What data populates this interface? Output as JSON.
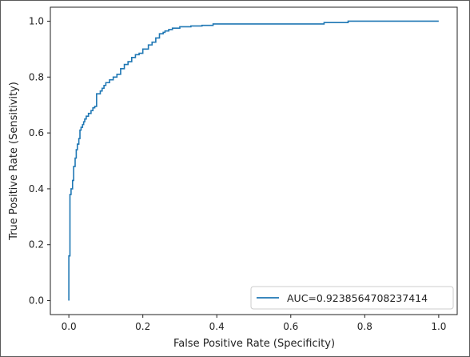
{
  "chart_data": {
    "type": "line",
    "xlabel": "False Positive Rate (Specificity)",
    "ylabel": "True Positive Rate  (Sensitivity)",
    "xlim": [
      -0.05,
      1.05
    ],
    "ylim": [
      -0.05,
      1.05
    ],
    "xticks": [
      "0.0",
      "0.2",
      "0.4",
      "0.6",
      "0.8",
      "1.0"
    ],
    "yticks": [
      "0.0",
      "0.2",
      "0.4",
      "0.6",
      "0.8",
      "1.0"
    ],
    "grid": false,
    "legend_position": "lower-right",
    "line_color": "#1f77b4",
    "series": [
      {
        "name": "AUC=0.9238564708237414",
        "x": [
          0.0,
          0.0,
          0.003,
          0.003,
          0.006,
          0.006,
          0.01,
          0.01,
          0.013,
          0.013,
          0.017,
          0.017,
          0.02,
          0.02,
          0.023,
          0.023,
          0.027,
          0.027,
          0.03,
          0.03,
          0.033,
          0.033,
          0.037,
          0.037,
          0.04,
          0.04,
          0.043,
          0.043,
          0.047,
          0.047,
          0.053,
          0.053,
          0.06,
          0.06,
          0.065,
          0.065,
          0.07,
          0.07,
          0.075,
          0.075,
          0.085,
          0.085,
          0.09,
          0.09,
          0.095,
          0.095,
          0.1,
          0.1,
          0.11,
          0.11,
          0.12,
          0.12,
          0.13,
          0.13,
          0.14,
          0.14,
          0.15,
          0.15,
          0.16,
          0.16,
          0.17,
          0.17,
          0.18,
          0.18,
          0.19,
          0.19,
          0.2,
          0.2,
          0.215,
          0.215,
          0.225,
          0.225,
          0.235,
          0.235,
          0.245,
          0.245,
          0.255,
          0.255,
          0.26,
          0.26,
          0.27,
          0.27,
          0.28,
          0.28,
          0.3,
          0.3,
          0.33,
          0.33,
          0.36,
          0.36,
          0.39,
          0.39,
          0.69,
          0.69,
          0.755,
          0.755,
          1.0
        ],
        "y": [
          0.0,
          0.16,
          0.16,
          0.38,
          0.38,
          0.4,
          0.4,
          0.43,
          0.43,
          0.48,
          0.48,
          0.51,
          0.51,
          0.54,
          0.54,
          0.56,
          0.56,
          0.58,
          0.58,
          0.61,
          0.61,
          0.62,
          0.62,
          0.63,
          0.63,
          0.64,
          0.64,
          0.65,
          0.65,
          0.66,
          0.66,
          0.67,
          0.67,
          0.68,
          0.68,
          0.69,
          0.69,
          0.695,
          0.695,
          0.74,
          0.74,
          0.75,
          0.75,
          0.76,
          0.76,
          0.77,
          0.77,
          0.78,
          0.78,
          0.79,
          0.79,
          0.8,
          0.8,
          0.81,
          0.81,
          0.83,
          0.83,
          0.845,
          0.845,
          0.855,
          0.855,
          0.87,
          0.87,
          0.88,
          0.88,
          0.885,
          0.885,
          0.9,
          0.9,
          0.915,
          0.915,
          0.925,
          0.925,
          0.94,
          0.94,
          0.955,
          0.955,
          0.96,
          0.96,
          0.965,
          0.965,
          0.97,
          0.97,
          0.975,
          0.975,
          0.98,
          0.98,
          0.983,
          0.983,
          0.985,
          0.985,
          0.99,
          0.99,
          0.995,
          0.995,
          1.0,
          1.0
        ]
      }
    ]
  }
}
